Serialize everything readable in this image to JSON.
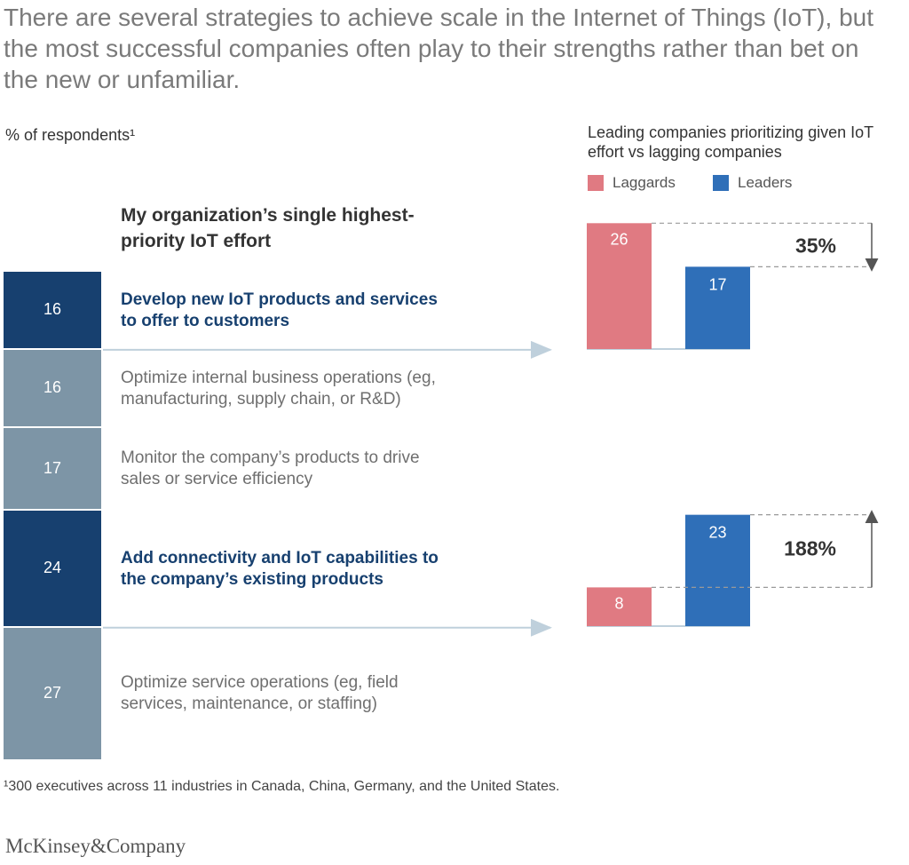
{
  "headline": "There are several strategies to achieve scale in the Internet of Things (IoT), but the most successful companies often play to their strengths rather than bet on the new or unfamiliar.",
  "left_subtitle": "% of respondents¹",
  "right_subtitle": "Leading companies prioritizing given IoT effort vs lagging companies",
  "column_heading": "My organization’s single highest-priority IoT effort",
  "colors": {
    "dark_navy": "#17406f",
    "slate": "#7d95a6",
    "laggards": "#e07a82",
    "leaders": "#2f6fb8",
    "arrow": "#bfd0dc"
  },
  "chart_data": [
    {
      "type": "bar",
      "subtype": "stacked-100",
      "title": "My organization’s single highest-priority IoT effort",
      "ylabel": "% of respondents",
      "categories": [
        "Develop new IoT products and services to offer to customers",
        "Optimize internal business operations (eg, manufacturing, supply chain, or R&D)",
        "Monitor the company’s products to drive sales or service efficiency",
        "Add connectivity and IoT capabilities to the company’s existing products",
        "Optimize service operations (eg, field services, maintenance, or staffing)"
      ],
      "values": [
        16,
        16,
        17,
        24,
        27
      ],
      "highlighted": [
        true,
        false,
        false,
        true,
        false
      ]
    },
    {
      "type": "bar",
      "title": "Leading companies prioritizing given IoT effort vs lagging companies",
      "legend": [
        "Laggards",
        "Leaders"
      ],
      "groups": [
        {
          "category": "Develop new IoT products and services to offer to customers",
          "laggards": 26,
          "leaders": 17,
          "change_label": "35%",
          "direction": "down"
        },
        {
          "category": "Add connectivity and IoT capabilities to the company’s existing products",
          "laggards": 8,
          "leaders": 23,
          "change_label": "188%",
          "direction": "up"
        }
      ]
    }
  ],
  "footnote": "¹300 executives across 11 industries in Canada, China, Germany, and the United States.",
  "brand": "McKinsey&Company"
}
